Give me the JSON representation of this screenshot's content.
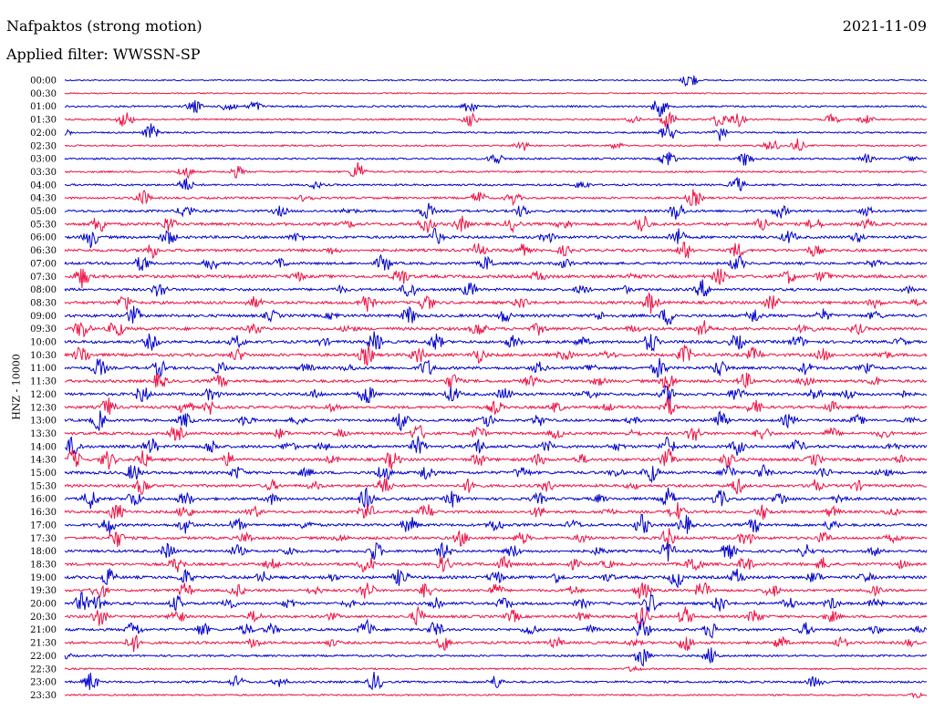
{
  "header": {
    "station_title": "Nafpaktos (strong motion)",
    "date": "2021-11-09",
    "filter_label": "Applied filter: WWSSN-SP"
  },
  "chart_data": {
    "type": "line",
    "ylabel": "HNZ - 10000",
    "colors": [
      "#0000cc",
      "#ee1144"
    ],
    "rows": [
      {
        "label": "00:00",
        "color": "#0000cc",
        "activity": 0.05,
        "events": [
          0.725
        ]
      },
      {
        "label": "00:30",
        "color": "#ee1144",
        "activity": 0.04,
        "events": []
      },
      {
        "label": "01:00",
        "color": "#0000cc",
        "activity": 0.2,
        "events": [
          0.15,
          0.19,
          0.22,
          0.47,
          0.69
        ]
      },
      {
        "label": "01:30",
        "color": "#ee1144",
        "activity": 0.15,
        "events": [
          0.07,
          0.47,
          0.66,
          0.7,
          0.76,
          0.78,
          0.89,
          0.93
        ]
      },
      {
        "label": "02:00",
        "color": "#0000cc",
        "activity": 0.18,
        "events": [
          0.0,
          0.1,
          0.7,
          0.76
        ]
      },
      {
        "label": "02:30",
        "color": "#ee1144",
        "activity": 0.15,
        "events": [
          0.53,
          0.64,
          0.82,
          0.85
        ]
      },
      {
        "label": "03:00",
        "color": "#0000cc",
        "activity": 0.2,
        "events": [
          0.5,
          0.7,
          0.79,
          0.93,
          0.98
        ]
      },
      {
        "label": "03:30",
        "color": "#ee1144",
        "activity": 0.2,
        "events": [
          0.14,
          0.2,
          0.34
        ]
      },
      {
        "label": "04:00",
        "color": "#0000cc",
        "activity": 0.25,
        "events": [
          0.14,
          0.29,
          0.6,
          0.78
        ]
      },
      {
        "label": "04:30",
        "color": "#ee1144",
        "activity": 0.3,
        "events": [
          0.09,
          0.28,
          0.48,
          0.52,
          0.73
        ]
      },
      {
        "label": "05:00",
        "color": "#0000cc",
        "activity": 0.4,
        "events": [
          0.14,
          0.25,
          0.33,
          0.42,
          0.53,
          0.71,
          0.83,
          0.93
        ]
      },
      {
        "label": "05:30",
        "color": "#ee1144",
        "activity": 0.55,
        "events": [
          0.04,
          0.12,
          0.33,
          0.42,
          0.46,
          0.52,
          0.58,
          0.67,
          0.81,
          0.87,
          0.93
        ]
      },
      {
        "label": "06:00",
        "color": "#0000cc",
        "activity": 0.5,
        "events": [
          0.03,
          0.12,
          0.27,
          0.43,
          0.56,
          0.71,
          0.84,
          0.92
        ]
      },
      {
        "label": "06:30",
        "color": "#ee1144",
        "activity": 0.5,
        "events": [
          0.1,
          0.31,
          0.48,
          0.53,
          0.58,
          0.72,
          0.78,
          0.87
        ]
      },
      {
        "label": "07:00",
        "color": "#0000cc",
        "activity": 0.45,
        "events": [
          0.09,
          0.17,
          0.25,
          0.37,
          0.49,
          0.58,
          0.78,
          0.94
        ]
      },
      {
        "label": "07:30",
        "color": "#ee1144",
        "activity": 0.6,
        "events": [
          0.02,
          0.27,
          0.39,
          0.55,
          0.66,
          0.76,
          0.84,
          0.88
        ]
      },
      {
        "label": "08:00",
        "color": "#0000cc",
        "activity": 0.5,
        "events": [
          0.11,
          0.32,
          0.4,
          0.47,
          0.6,
          0.65,
          0.74,
          0.98
        ]
      },
      {
        "label": "08:30",
        "color": "#ee1144",
        "activity": 0.55,
        "events": [
          0.07,
          0.22,
          0.35,
          0.42,
          0.53,
          0.68,
          0.82,
          0.94,
          0.99
        ]
      },
      {
        "label": "09:00",
        "color": "#0000cc",
        "activity": 0.55,
        "events": [
          0.08,
          0.24,
          0.31,
          0.4,
          0.51,
          0.62,
          0.7,
          0.8,
          0.88,
          0.94
        ]
      },
      {
        "label": "09:30",
        "color": "#ee1144",
        "activity": 0.6,
        "events": [
          0.02,
          0.06,
          0.22,
          0.33,
          0.48,
          0.55,
          0.66,
          0.74,
          0.86,
          0.92
        ]
      },
      {
        "label": "10:00",
        "color": "#0000cc",
        "activity": 0.55,
        "events": [
          0.1,
          0.2,
          0.3,
          0.36,
          0.43,
          0.52,
          0.6,
          0.68,
          0.78,
          0.85,
          0.97
        ]
      },
      {
        "label": "10:30",
        "color": "#ee1144",
        "activity": 0.6,
        "events": [
          0.02,
          0.2,
          0.35,
          0.41,
          0.48,
          0.58,
          0.63,
          0.72,
          0.8,
          0.88,
          0.95
        ]
      },
      {
        "label": "11:00",
        "color": "#0000cc",
        "activity": 0.55,
        "events": [
          0.04,
          0.11,
          0.18,
          0.28,
          0.33,
          0.42,
          0.55,
          0.61,
          0.69,
          0.76,
          0.86,
          0.93
        ]
      },
      {
        "label": "11:30",
        "color": "#ee1144",
        "activity": 0.55,
        "events": [
          0.11,
          0.18,
          0.45,
          0.54,
          0.62,
          0.7,
          0.79,
          0.86,
          0.94
        ]
      },
      {
        "label": "12:00",
        "color": "#0000cc",
        "activity": 0.55,
        "events": [
          0.09,
          0.17,
          0.29,
          0.35,
          0.45,
          0.51,
          0.61,
          0.7,
          0.78,
          0.87,
          0.91,
          0.97
        ]
      },
      {
        "label": "12:30",
        "color": "#ee1144",
        "activity": 0.5,
        "events": [
          0.05,
          0.14,
          0.17,
          0.31,
          0.5,
          0.57,
          0.63,
          0.7,
          0.8,
          0.89
        ]
      },
      {
        "label": "13:00",
        "color": "#0000cc",
        "activity": 0.45,
        "events": [
          0.04,
          0.14,
          0.21,
          0.27,
          0.39,
          0.49,
          0.55,
          0.66,
          0.76,
          0.84,
          0.92,
          0.98
        ]
      },
      {
        "label": "13:30",
        "color": "#ee1144",
        "activity": 0.5,
        "events": [
          0.13,
          0.25,
          0.32,
          0.41,
          0.48,
          0.57,
          0.66,
          0.73,
          0.81,
          0.89,
          0.95
        ]
      },
      {
        "label": "14:00",
        "color": "#0000cc",
        "activity": 0.55,
        "events": [
          0.01,
          0.1,
          0.17,
          0.26,
          0.3,
          0.41,
          0.48,
          0.56,
          0.64,
          0.7,
          0.78,
          0.85,
          0.96
        ]
      },
      {
        "label": "14:30",
        "color": "#ee1144",
        "activity": 0.55,
        "events": [
          0.01,
          0.05,
          0.09,
          0.19,
          0.31,
          0.38,
          0.48,
          0.55,
          0.6,
          0.7,
          0.77,
          0.87,
          0.97
        ]
      },
      {
        "label": "15:00",
        "color": "#0000cc",
        "activity": 0.55,
        "events": [
          0.08,
          0.2,
          0.28,
          0.37,
          0.42,
          0.53,
          0.64,
          0.68,
          0.77,
          0.81,
          0.88,
          0.95
        ]
      },
      {
        "label": "15:30",
        "color": "#ee1144",
        "activity": 0.5,
        "events": [
          0.09,
          0.24,
          0.29,
          0.37,
          0.47,
          0.56,
          0.66,
          0.78,
          0.87,
          0.92
        ]
      },
      {
        "label": "16:00",
        "color": "#0000cc",
        "activity": 0.5,
        "events": [
          0.03,
          0.08,
          0.14,
          0.24,
          0.35,
          0.45,
          0.55,
          0.62,
          0.7,
          0.76,
          0.83,
          0.9
        ]
      },
      {
        "label": "16:30",
        "color": "#ee1144",
        "activity": 0.45,
        "events": [
          0.06,
          0.14,
          0.22,
          0.35,
          0.42,
          0.55,
          0.63,
          0.71,
          0.81,
          0.89,
          0.96
        ]
      },
      {
        "label": "17:00",
        "color": "#0000cc",
        "activity": 0.5,
        "events": [
          0.05,
          0.14,
          0.2,
          0.28,
          0.4,
          0.5,
          0.59,
          0.67,
          0.72,
          0.8,
          0.89
        ]
      },
      {
        "label": "17:30",
        "color": "#ee1144",
        "activity": 0.5,
        "events": [
          0.06,
          0.21,
          0.32,
          0.46,
          0.53,
          0.6,
          0.7,
          0.79,
          0.88,
          0.96
        ]
      },
      {
        "label": "18:00",
        "color": "#0000cc",
        "activity": 0.45,
        "events": [
          0.12,
          0.2,
          0.26,
          0.36,
          0.44,
          0.52,
          0.62,
          0.7,
          0.77,
          0.86,
          0.94
        ]
      },
      {
        "label": "18:30",
        "color": "#ee1144",
        "activity": 0.55,
        "events": [
          0.13,
          0.24,
          0.35,
          0.44,
          0.51,
          0.59,
          0.63,
          0.73,
          0.79,
          0.88,
          0.97
        ]
      },
      {
        "label": "19:00",
        "color": "#0000cc",
        "activity": 0.55,
        "events": [
          0.05,
          0.14,
          0.23,
          0.31,
          0.39,
          0.5,
          0.57,
          0.63,
          0.71,
          0.78,
          0.87,
          0.93
        ]
      },
      {
        "label": "19:30",
        "color": "#ee1144",
        "activity": 0.45,
        "events": [
          0.04,
          0.14,
          0.2,
          0.29,
          0.35,
          0.42,
          0.5,
          0.59,
          0.67,
          0.74,
          0.82,
          0.94
        ]
      },
      {
        "label": "20:00",
        "color": "#0000cc",
        "activity": 0.5,
        "events": [
          0.02,
          0.04,
          0.13,
          0.19,
          0.26,
          0.33,
          0.43,
          0.51,
          0.6,
          0.68,
          0.76,
          0.84,
          0.89,
          0.94
        ]
      },
      {
        "label": "20:30",
        "color": "#ee1144",
        "activity": 0.45,
        "events": [
          0.04,
          0.13,
          0.22,
          0.31,
          0.41,
          0.52,
          0.6,
          0.67,
          0.72,
          0.8,
          0.89
        ]
      },
      {
        "label": "21:00",
        "color": "#0000cc",
        "activity": 0.45,
        "events": [
          0.08,
          0.16,
          0.21,
          0.24,
          0.35,
          0.43,
          0.54,
          0.61,
          0.67,
          0.75,
          0.86,
          0.94,
          0.99
        ]
      },
      {
        "label": "21:30",
        "color": "#ee1144",
        "activity": 0.45,
        "events": [
          0.08,
          0.22,
          0.31,
          0.44,
          0.57,
          0.66,
          0.72,
          0.83,
          0.9,
          0.98
        ]
      },
      {
        "label": "22:00",
        "color": "#0000cc",
        "activity": 0.25,
        "events": [
          0.0,
          0.67,
          0.75
        ]
      },
      {
        "label": "22:30",
        "color": "#ee1144",
        "activity": 0.15,
        "events": [
          0.66
        ]
      },
      {
        "label": "23:00",
        "color": "#0000cc",
        "activity": 0.3,
        "events": [
          0.03,
          0.2,
          0.25,
          0.36,
          0.5,
          0.87
        ]
      },
      {
        "label": "23:30",
        "color": "#ee1144",
        "activity": 0.15,
        "events": [
          0.99
        ]
      }
    ]
  }
}
